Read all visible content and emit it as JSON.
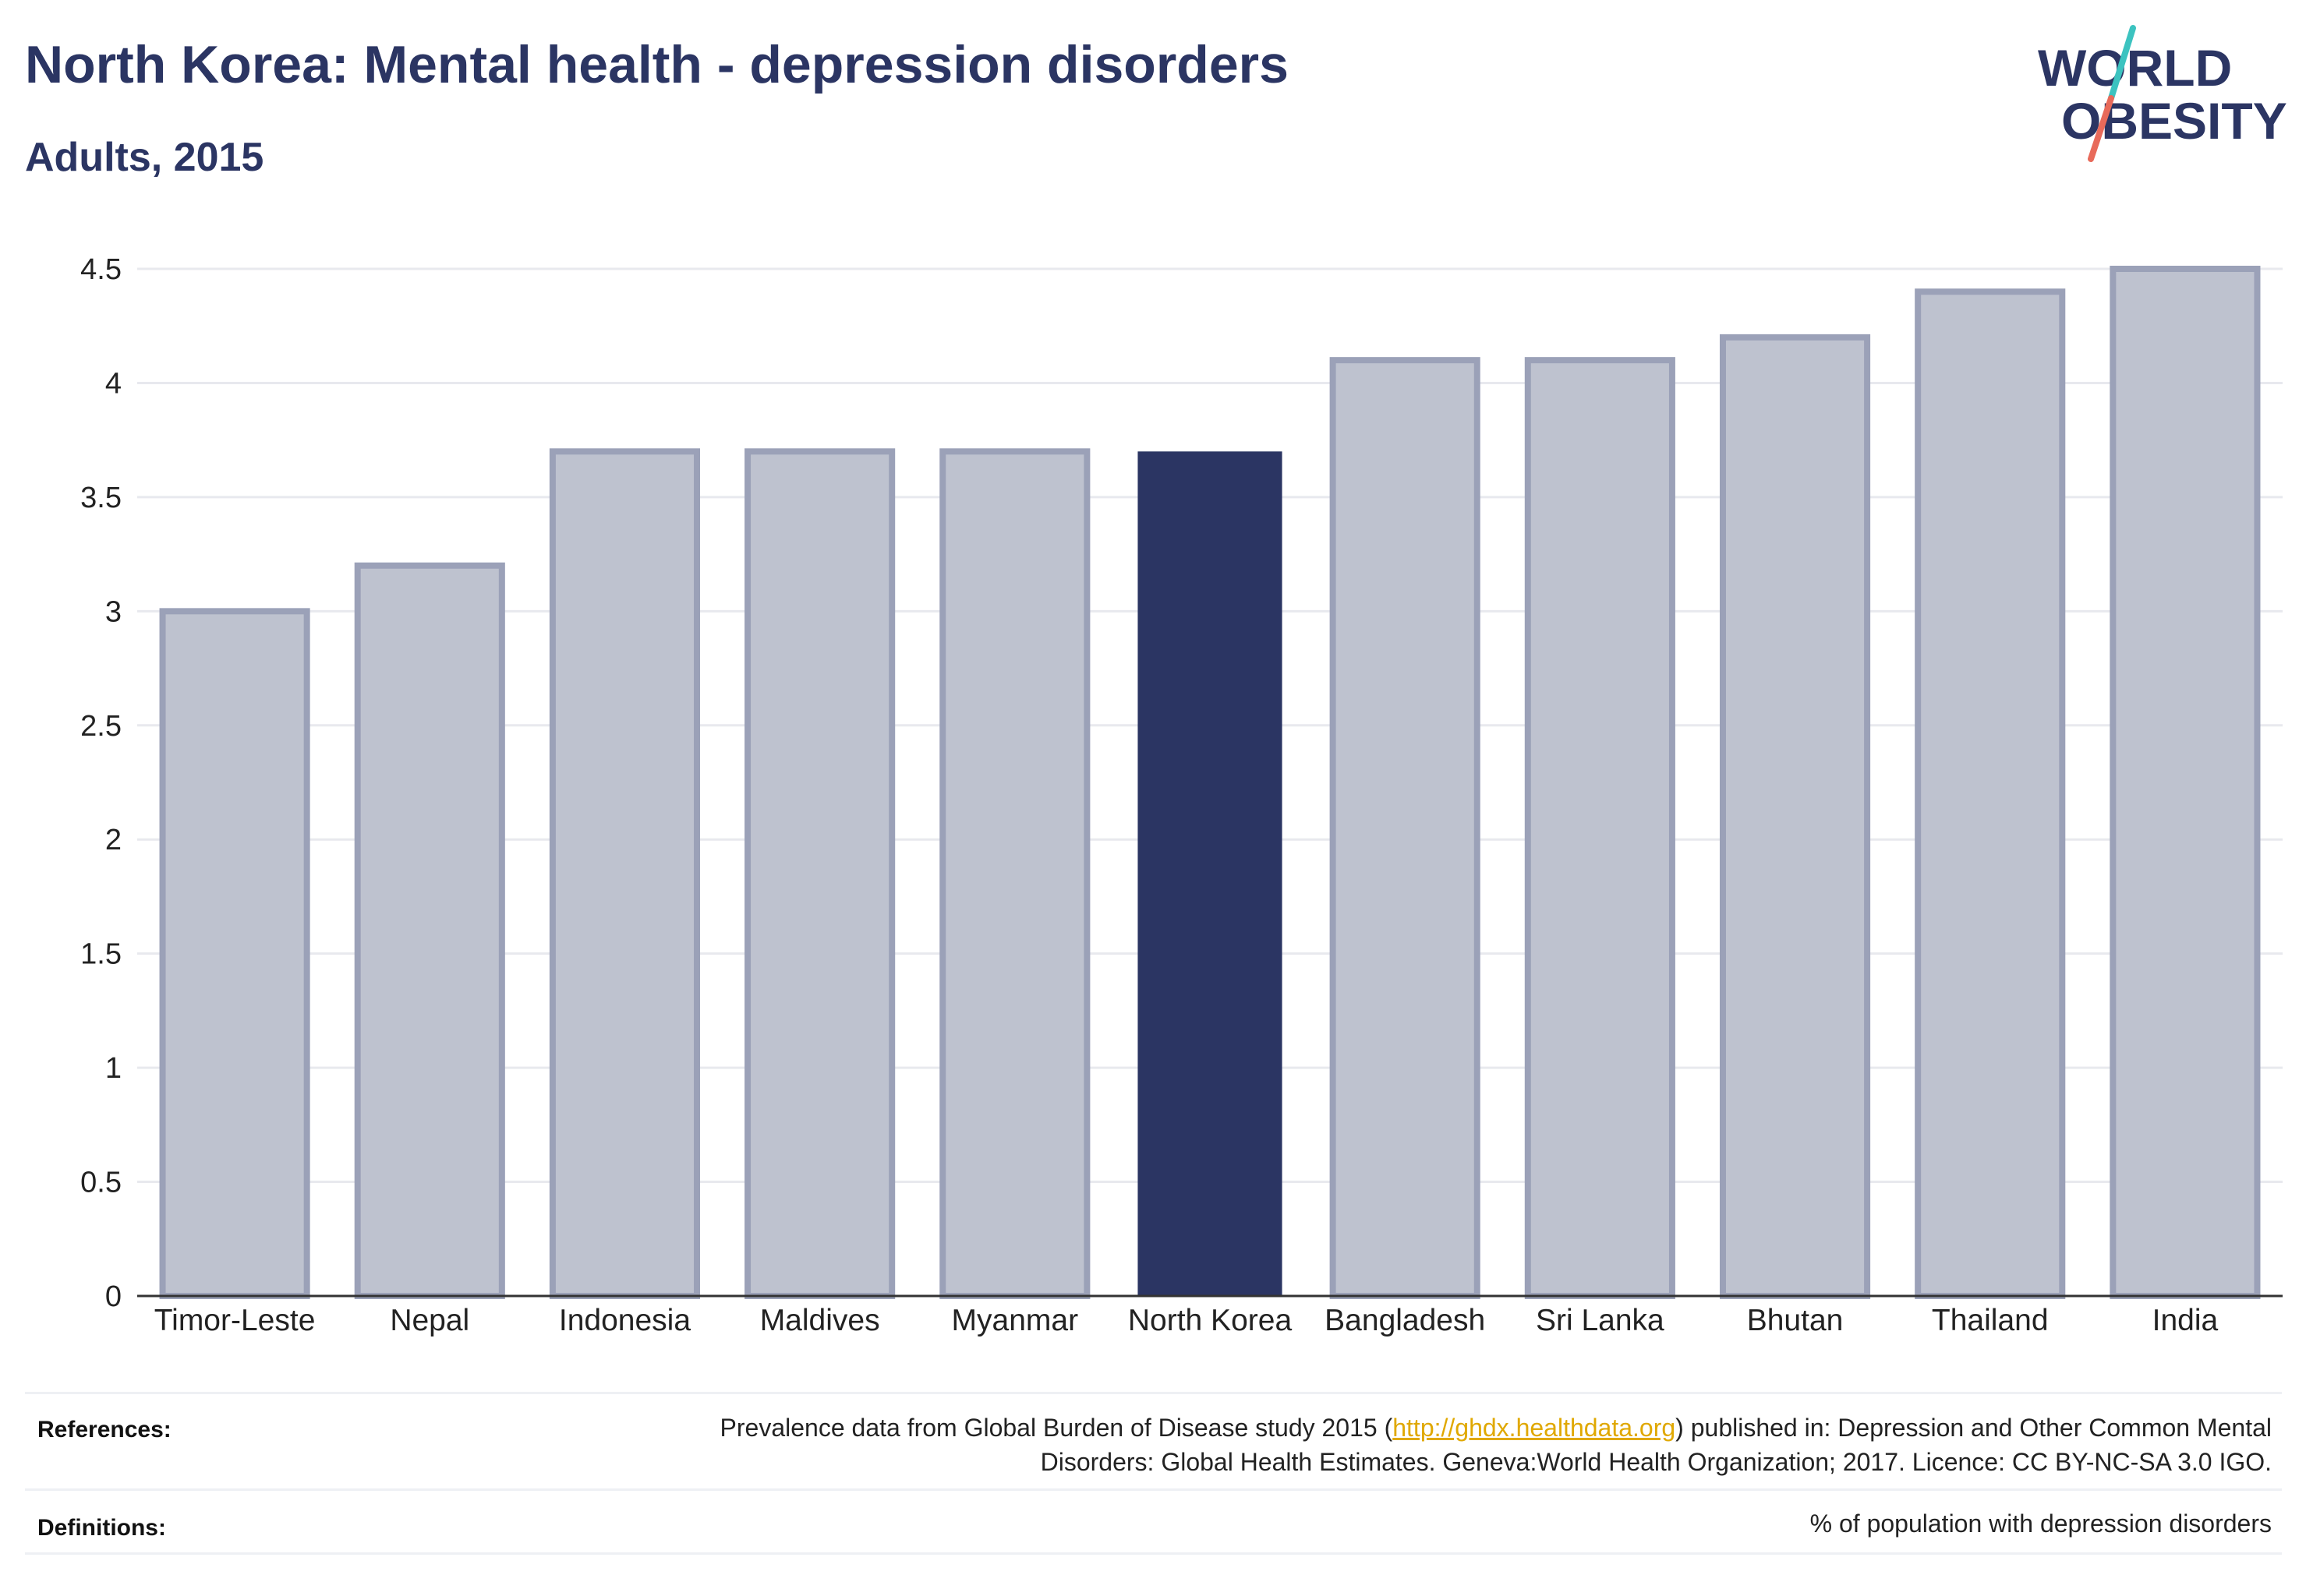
{
  "header": {
    "title": "North Korea: Mental health - depression disorders",
    "subtitle": "Adults, 2015"
  },
  "logo": {
    "line1": "WORLD",
    "line2": "OBESITY",
    "slash_colors": [
      "#3cc3c0",
      "#e86a5a"
    ]
  },
  "colors": {
    "highlight": "#2b3563",
    "other_fill": "#bec2cf",
    "other_stroke": "#9ba1b8",
    "gridline": "#e8e9ee",
    "axis": "#333333"
  },
  "chart_data": {
    "type": "bar",
    "categories": [
      "Timor-Leste",
      "Nepal",
      "Indonesia",
      "Maldives",
      "Myanmar",
      "North Korea",
      "Bangladesh",
      "Sri Lanka",
      "Bhutan",
      "Thailand",
      "India"
    ],
    "values": [
      3.0,
      3.2,
      3.7,
      3.7,
      3.7,
      3.7,
      4.1,
      4.1,
      4.2,
      4.4,
      4.5
    ],
    "highlight": "North Korea",
    "ylim": [
      0,
      4.5
    ],
    "yticks": [
      "0",
      "0.5",
      "1",
      "1.5",
      "2",
      "2.5",
      "3",
      "3.5",
      "4",
      "4.5"
    ],
    "grid": true,
    "title": "North Korea: Mental health - depression disorders",
    "subtitle": "Adults, 2015"
  },
  "footer": {
    "references_label": "References:",
    "references_pre": "Prevalence data from Global Burden of Disease study 2015 (",
    "references_link": "http://ghdx.healthdata.org",
    "references_post": ") published in: Depression and Other Common Mental Disorders: Global Health Estimates. Geneva:World Health Organization; 2017. Licence: CC BY-NC-SA 3.0 IGO.",
    "definitions_label": "Definitions:",
    "definitions_text": "% of population with depression disorders"
  }
}
